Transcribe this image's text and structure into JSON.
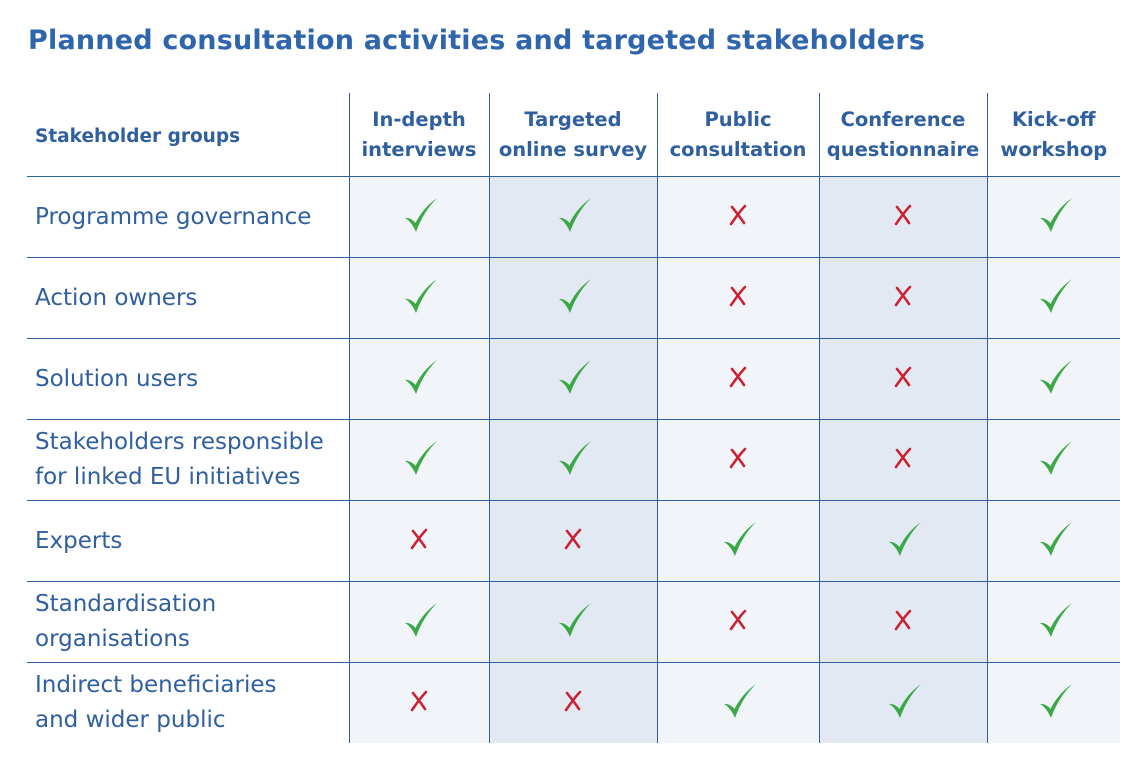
{
  "title": "Planned consultation activities and targeted stakeholders",
  "colors": {
    "title": "#2e65ab",
    "text": "#2f5f9e",
    "check": "#3aa845",
    "cross": "#cc2130",
    "shade_light": "#f1f4f9",
    "shade_dark": "#e3e9f3"
  },
  "table": {
    "group_header": "Stakeholder groups",
    "columns": [
      {
        "line1": "In-depth",
        "line2": "interviews"
      },
      {
        "line1": "Targeted",
        "line2": "online survey"
      },
      {
        "line1": "Public",
        "line2": "consultation"
      },
      {
        "line1": "Conference",
        "line2": "questionnaire"
      },
      {
        "line1": "Kick-off",
        "line2": "workshop"
      }
    ],
    "rows": [
      {
        "line1": "Programme governance",
        "line2": "",
        "marks": [
          "check",
          "check",
          "cross",
          "cross",
          "check"
        ]
      },
      {
        "line1": "Action owners",
        "line2": "",
        "marks": [
          "check",
          "check",
          "cross",
          "cross",
          "check"
        ]
      },
      {
        "line1": "Solution users",
        "line2": "",
        "marks": [
          "check",
          "check",
          "cross",
          "cross",
          "check"
        ]
      },
      {
        "line1": "Stakeholders responsible",
        "line2": "for linked EU initiatives",
        "marks": [
          "check",
          "check",
          "cross",
          "cross",
          "check"
        ]
      },
      {
        "line1": "Experts",
        "line2": "",
        "marks": [
          "cross",
          "cross",
          "check",
          "check",
          "check"
        ]
      },
      {
        "line1": "Standardisation",
        "line2": "organisations",
        "marks": [
          "check",
          "check",
          "cross",
          "cross",
          "check"
        ]
      },
      {
        "line1": "Indirect beneficiaries",
        "line2": "and wider public",
        "marks": [
          "cross",
          "cross",
          "check",
          "check",
          "check"
        ]
      }
    ]
  }
}
